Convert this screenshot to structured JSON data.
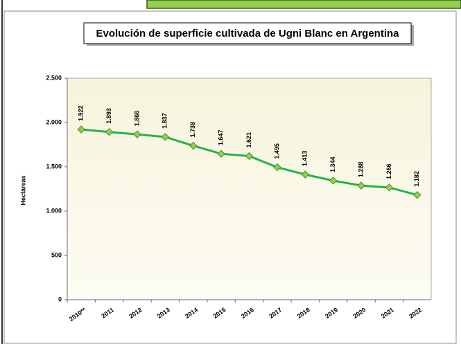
{
  "chart_data": {
    "type": "line",
    "title": "Evolución de superficie cultivada de Ugni Blanc en Argentina",
    "y_label": "Hectáreas",
    "categories": [
      "2010**",
      "2011",
      "2012",
      "2013",
      "2014",
      "2015",
      "2016",
      "2017",
      "2018",
      "2019",
      "2020",
      "2021",
      "2022"
    ],
    "series": [
      {
        "name": "Ugni Blanc",
        "color": "#22b34a",
        "values": [
          1922,
          1893,
          1866,
          1837,
          1738,
          1647,
          1621,
          1495,
          1413,
          1344,
          1288,
          1266,
          1182
        ],
        "value_labels": [
          "1.922",
          "1.893",
          "1.866",
          "1.837",
          "1.738",
          "1.647",
          "1.621",
          "1.495",
          "1.413",
          "1.344",
          "1.288",
          "1.266",
          "1.182"
        ]
      }
    ],
    "ylim": [
      0,
      2500
    ],
    "yticks": [
      0,
      500,
      {
        "value": 1000,
        "label": "1.000"
      },
      {
        "value": 1500,
        "label": "1.500"
      },
      {
        "value": 2000,
        "label": "2.000"
      },
      {
        "value": 2500,
        "label": "2.500"
      }
    ]
  }
}
